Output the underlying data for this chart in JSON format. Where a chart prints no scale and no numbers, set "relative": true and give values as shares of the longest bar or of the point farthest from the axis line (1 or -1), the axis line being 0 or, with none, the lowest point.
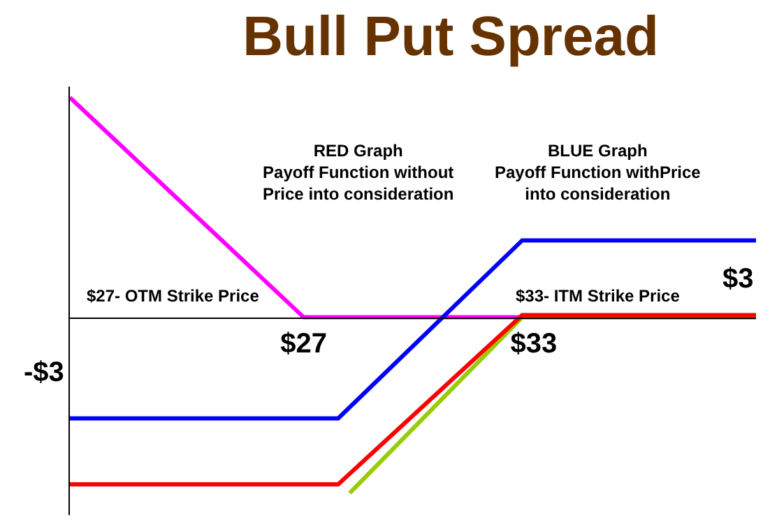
{
  "chart_data": {
    "type": "line",
    "title": "Bull Put Spread",
    "relative": true,
    "xlim": [
      20.9,
      38.8
    ],
    "xticks": [
      {
        "value": 27,
        "label": "$27"
      },
      {
        "value": 33,
        "label": "$33"
      }
    ],
    "series": [
      {
        "color": "#ff00ff",
        "x": [
          20.9,
          27,
          38.8
        ],
        "values": [
          1,
          0,
          0
        ]
      },
      {
        "color": "#0000ff",
        "x": [
          20.9,
          27.9,
          32.7,
          38.8
        ],
        "values": [
          -0.46,
          -0.46,
          0.35,
          0.35
        ]
      },
      {
        "color": "#99cc00",
        "x": [
          28.2,
          32.7,
          38.8
        ],
        "values": [
          -0.8,
          0,
          0
        ]
      },
      {
        "color": "#ff0000",
        "x": [
          20.9,
          27.9,
          32.7,
          38.8
        ],
        "values": [
          -0.76,
          -0.76,
          0.01,
          0.01
        ]
      }
    ],
    "annotations": [
      "RED Graph\nPayoff Function without\nPrice into consideration",
      "BLUE Graph\nPayoff Function withPrice\ninto consideration",
      "$27- OTM Strike Price",
      "$33- ITM Strike Price",
      "-$3",
      "$3"
    ],
    "legend": false,
    "marker": "none",
    "line_style": "solid"
  }
}
